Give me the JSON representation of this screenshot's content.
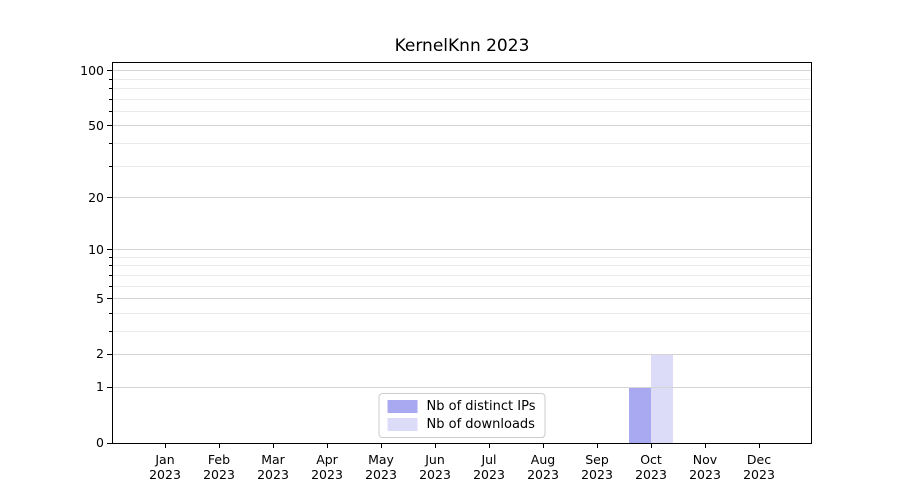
{
  "chart_data": {
    "type": "bar",
    "title": "KernelKnn 2023",
    "categories": [
      "Jan",
      "Feb",
      "Mar",
      "Apr",
      "May",
      "Jun",
      "Jul",
      "Aug",
      "Sep",
      "Oct",
      "Nov",
      "Dec"
    ],
    "category_year": "2023",
    "series": [
      {
        "name": "Nb of distinct IPs",
        "color": "#a9a9f2",
        "values": [
          0,
          0,
          0,
          0,
          0,
          0,
          0,
          0,
          0,
          1,
          0,
          0
        ]
      },
      {
        "name": "Nb of downloads",
        "color": "#dcdcf8",
        "values": [
          0,
          0,
          0,
          0,
          0,
          0,
          0,
          0,
          0,
          2,
          0,
          0
        ]
      }
    ],
    "yscale": "log1p",
    "ylim": [
      0,
      110.4
    ],
    "yticks": [
      0,
      1,
      2,
      5,
      10,
      20,
      50,
      100
    ],
    "yticks_minor": [
      3,
      4,
      6,
      7,
      8,
      9,
      30,
      40,
      60,
      70,
      80,
      90
    ],
    "grid": "horizontal",
    "legend_position": "lower center",
    "colors": {
      "major_grid": "#d4d4d4",
      "minor_grid": "#ebebeb",
      "axis": "#000000",
      "text": "#000000",
      "background": "#ffffff"
    }
  }
}
